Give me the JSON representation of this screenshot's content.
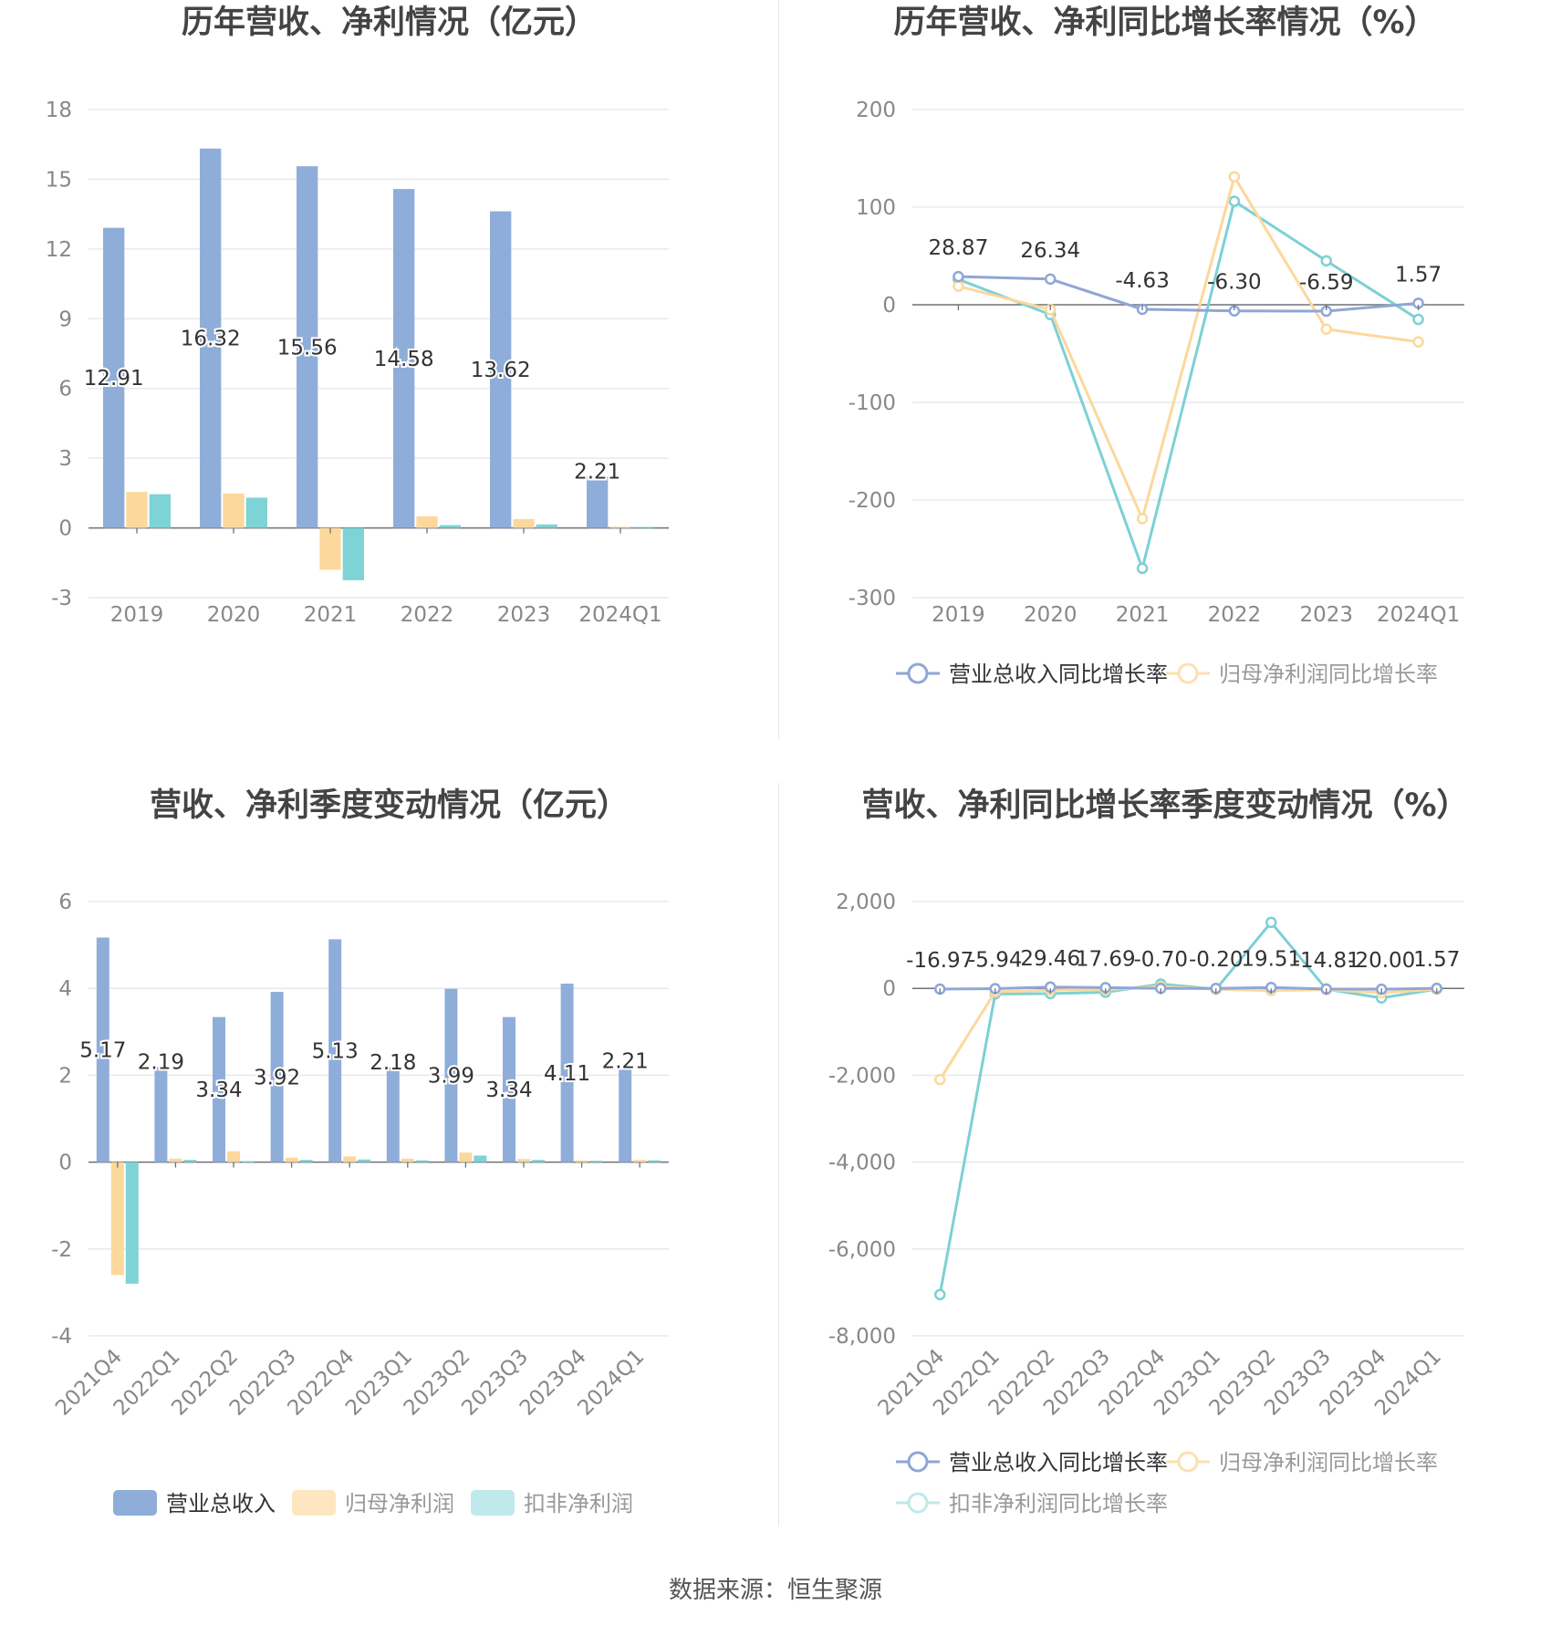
{
  "source": "数据来源：恒生聚源",
  "colors": {
    "revenue": "#8fadd9",
    "net_profit": "#fcd89c",
    "deducted": "#7ed3d6",
    "revenue_line": "#8fa6d6",
    "net_line": "#fcd89c",
    "deducted_line": "#7dd0d4"
  },
  "chart_data": [
    {
      "id": "annual_amounts",
      "type": "bar",
      "title": "历年营收、净利情况（亿元）",
      "categories": [
        "2019",
        "2020",
        "2021",
        "2022",
        "2023",
        "2024Q1"
      ],
      "ylim": [
        -3,
        18
      ],
      "yticks": [
        -3,
        0,
        3,
        6,
        9,
        12,
        15,
        18
      ],
      "series": [
        {
          "name": "营业总收入",
          "values": [
            12.91,
            16.32,
            15.56,
            14.58,
            13.62,
            2.21
          ],
          "labeled": true
        },
        {
          "name": "归母净利润",
          "values": [
            1.55,
            1.48,
            -1.8,
            0.5,
            0.38,
            0.05
          ]
        },
        {
          "name": "扣非净利润",
          "values": [
            1.45,
            1.3,
            -2.25,
            0.12,
            0.15,
            0.04
          ]
        }
      ],
      "labels": [
        "12.91",
        "16.32",
        "15.56",
        "14.58",
        "13.62",
        "2.21"
      ],
      "legend": "bottom"
    },
    {
      "id": "annual_growth",
      "type": "line",
      "title": "历年营收、净利同比增长率情况（%）",
      "categories": [
        "2019",
        "2020",
        "2021",
        "2022",
        "2023",
        "2024Q1"
      ],
      "ylim": [
        -300,
        200
      ],
      "yticks": [
        -300,
        -200,
        -100,
        0,
        100,
        200
      ],
      "series": [
        {
          "name": "营业总收入同比增长率",
          "values": [
            28.87,
            26.34,
            -4.63,
            -6.3,
            -6.59,
            1.57
          ],
          "labeled": true
        },
        {
          "name": "归母净利润同比增长率",
          "values": [
            19,
            -5,
            -219,
            131,
            -25,
            -38
          ]
        },
        {
          "name": "扣非净利润同比增长率",
          "values": [
            26,
            -10,
            -270,
            106,
            45,
            -15
          ]
        }
      ],
      "labels": [
        "28.87",
        "26.34",
        "-4.63",
        "-6.30",
        "-6.59",
        "1.57"
      ],
      "legend": "bottom"
    },
    {
      "id": "quarterly_amounts",
      "type": "bar",
      "title": "营收、净利季度变动情况（亿元）",
      "categories": [
        "2021Q4",
        "2022Q1",
        "2022Q2",
        "2022Q3",
        "2022Q4",
        "2023Q1",
        "2023Q2",
        "2023Q3",
        "2023Q4",
        "2024Q1"
      ],
      "ylim": [
        -4,
        6
      ],
      "yticks": [
        -4,
        -2,
        0,
        2,
        4,
        6
      ],
      "series": [
        {
          "name": "营业总收入",
          "values": [
            5.17,
            2.19,
            3.34,
            3.92,
            5.13,
            2.18,
            3.99,
            3.34,
            4.11,
            2.21
          ],
          "labeled": true
        },
        {
          "name": "归母净利润",
          "values": [
            -2.6,
            0.08,
            0.25,
            0.1,
            0.13,
            0.08,
            0.22,
            0.07,
            0.04,
            0.05
          ]
        },
        {
          "name": "扣非净利润",
          "values": [
            -2.8,
            0.05,
            0.02,
            0.05,
            0.06,
            0.04,
            0.15,
            0.05,
            0.03,
            0.04
          ]
        }
      ],
      "labels": [
        "5.17",
        "2.19",
        "3.34",
        "3.92",
        "5.13",
        "2.18",
        "3.99",
        "3.34",
        "4.11",
        "2.21"
      ],
      "legend": "bottom"
    },
    {
      "id": "quarterly_growth",
      "type": "line",
      "title": "营收、净利同比增长率季度变动情况（%）",
      "categories": [
        "2021Q4",
        "2022Q1",
        "2022Q2",
        "2022Q3",
        "2022Q4",
        "2023Q1",
        "2023Q2",
        "2023Q3",
        "2023Q4",
        "2024Q1"
      ],
      "ylim": [
        -8000,
        2000
      ],
      "yticks": [
        -8000,
        -6000,
        -4000,
        -2000,
        0,
        2000
      ],
      "ytick_labels": [
        "-8,000",
        "-6,000",
        "-4,000",
        "-2,000",
        "0",
        "2,000"
      ],
      "series": [
        {
          "name": "营业总收入同比增长率",
          "values": [
            -16.97,
            -5.94,
            29.46,
            17.69,
            -0.7,
            -0.2,
            19.51,
            -14.81,
            -20.0,
            1.57
          ],
          "labeled": true
        },
        {
          "name": "归母净利润同比增长率",
          "values": [
            -2100,
            -80,
            -40,
            -30,
            40,
            -20,
            -50,
            -30,
            -100,
            -20
          ]
        },
        {
          "name": "扣非净利润同比增长率",
          "values": [
            -7050,
            -130,
            -120,
            -90,
            100,
            -20,
            1520,
            -20,
            -220,
            -20
          ]
        }
      ],
      "labels": [
        "-16.97",
        "-5.94",
        "29.46",
        "17.69",
        "-0.70",
        "-0.20",
        "19.51",
        "-14.81",
        "-20.00",
        "1.57"
      ],
      "legend": "bottom"
    }
  ]
}
